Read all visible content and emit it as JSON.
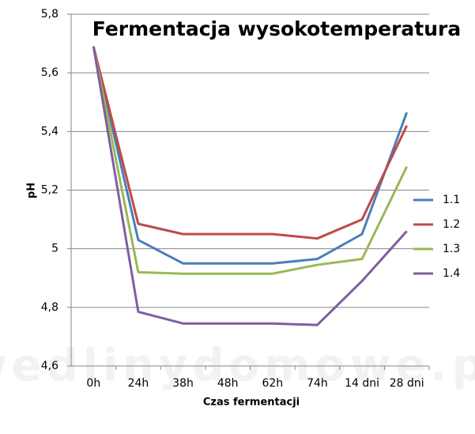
{
  "chart_data": {
    "type": "line",
    "title": "Fermentacja wysokotemperatura",
    "x_label": "Czas fermentacji",
    "y_label": "pH",
    "watermark": "wedlinydomowe.pl",
    "categories": [
      "0h",
      "24h",
      "38h",
      "48h",
      "62h",
      "74h",
      "14 dni",
      "28 dni"
    ],
    "series": [
      {
        "name": "1.1",
        "color": "#4a7ebb",
        "values": [
          5.69,
          5.03,
          4.95,
          4.95,
          4.95,
          4.965,
          5.05,
          5.465
        ]
      },
      {
        "name": "1.2",
        "color": "#be4b48",
        "values": [
          5.69,
          5.085,
          5.05,
          5.05,
          5.05,
          5.035,
          5.1,
          5.42
        ]
      },
      {
        "name": "1.3",
        "color": "#98b954",
        "values": [
          5.69,
          4.92,
          4.915,
          4.915,
          4.915,
          4.945,
          4.965,
          5.28
        ]
      },
      {
        "name": "1.4",
        "color": "#7d5fa0",
        "values": [
          5.69,
          4.785,
          4.745,
          4.745,
          4.745,
          4.74,
          4.89,
          5.06
        ]
      }
    ],
    "ylim": [
      4.6,
      5.8
    ],
    "yticks": [
      {
        "value": 4.6,
        "label": "4,6"
      },
      {
        "value": 4.8,
        "label": "4,8"
      },
      5,
      {
        "value": 5.2,
        "label": "5,2"
      },
      {
        "value": 5.4,
        "label": "5,4"
      },
      {
        "value": 5.6,
        "label": "5,6"
      },
      {
        "value": 5.8,
        "label": "5,8"
      }
    ],
    "grid": true,
    "legend": "right"
  }
}
